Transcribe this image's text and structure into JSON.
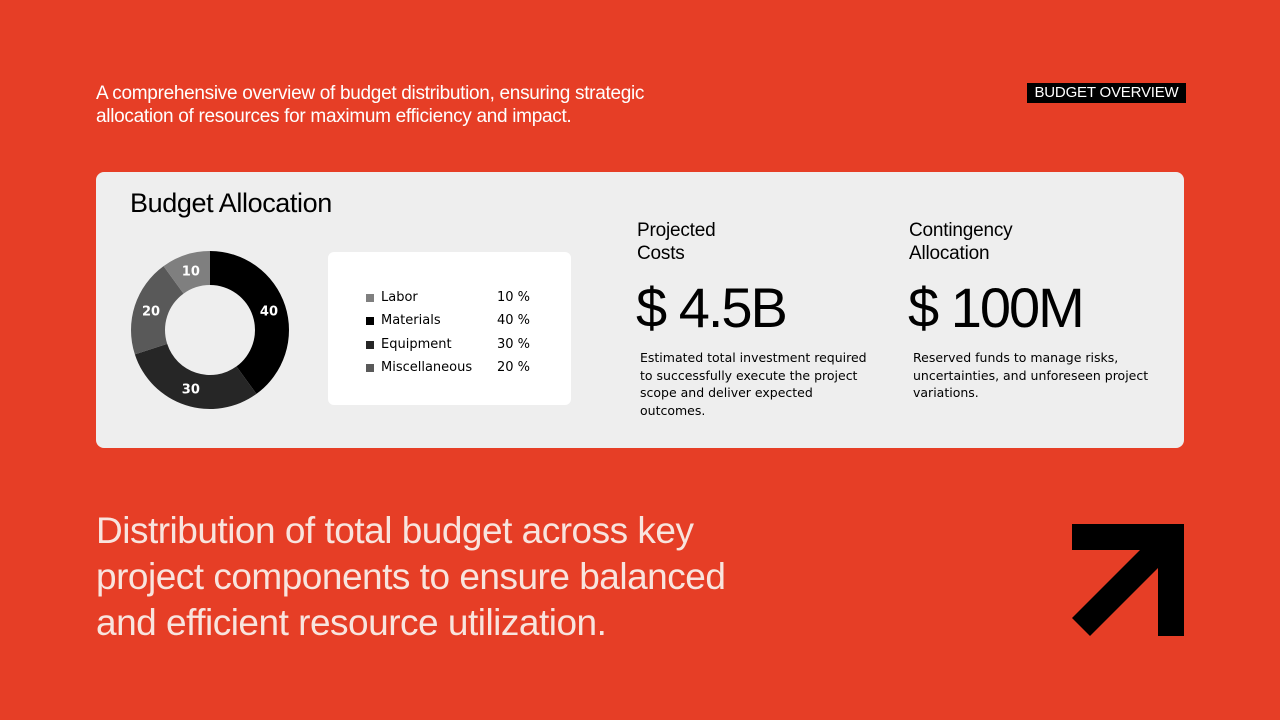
{
  "intro": "A comprehensive overview of budget distribution, ensuring strategic\nallocation of resources for maximum efficiency and impact.",
  "tag": "BUDGET OVERVIEW",
  "card": {
    "title": "Budget Allocation",
    "projected": {
      "label": "Projected\nCosts",
      "value": "$ 4.5B",
      "description": "Estimated total investment required to successfully execute the project scope and deliver expected outcomes."
    },
    "contingency": {
      "label": "Contingency\nAllocation",
      "value": "$ 100M",
      "description": "Reserved funds to manage risks, uncertainties, and unforeseen project variations."
    },
    "legend": [
      {
        "label": "Labor",
        "pct": "10 %",
        "color": "#7F7F7F"
      },
      {
        "label": "Materials",
        "pct": "40 %",
        "color": "#000000"
      },
      {
        "label": "Equipment",
        "pct": "30 %",
        "color": "#262626"
      },
      {
        "label": "Miscellaneous",
        "pct": "20 %",
        "color": "#595959"
      }
    ]
  },
  "chart_data": {
    "type": "pie",
    "categories": [
      "Materials",
      "Equipment",
      "Miscellaneous",
      "Labor"
    ],
    "values": [
      40,
      30,
      20,
      10
    ],
    "data_labels": [
      "40",
      "30",
      "20",
      "10"
    ],
    "colors": [
      "#000000",
      "#262626",
      "#595959",
      "#7F7F7F"
    ],
    "donut": true
  },
  "headline": "Distribution of total budget across key\nproject components to ensure balanced\nand efficient resource utilization.",
  "colors": {
    "background": "#E63E26",
    "card": "#EEEEEE",
    "headline": "#F8E4DE"
  },
  "icons": {
    "corner": "arrow-up-right-icon"
  }
}
